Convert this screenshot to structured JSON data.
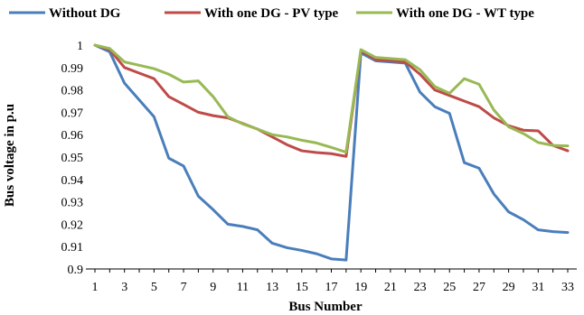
{
  "chart_data": {
    "type": "line",
    "title": "",
    "xlabel": "Bus Number",
    "ylabel": "Bus voltage in p.u",
    "ylim": [
      0.9,
      1.0
    ],
    "yticks": [
      "0.9",
      "0.91",
      "0.92",
      "0.93",
      "0.94",
      "0.95",
      "0.96",
      "0.97",
      "0.98",
      "0.99",
      "1"
    ],
    "xticks": [
      "1",
      "3",
      "5",
      "7",
      "9",
      "11",
      "13",
      "15",
      "17",
      "19",
      "21",
      "23",
      "25",
      "27",
      "29",
      "31",
      "33"
    ],
    "x": [
      1,
      2,
      3,
      4,
      5,
      6,
      7,
      8,
      9,
      10,
      11,
      12,
      13,
      14,
      15,
      16,
      17,
      18,
      19,
      20,
      21,
      22,
      23,
      24,
      25,
      26,
      27,
      28,
      29,
      30,
      31,
      32,
      33
    ],
    "grid": false,
    "legend_position": "top",
    "series": [
      {
        "name": "Without DG",
        "color": "#4a7ebb",
        "values": [
          1.0,
          0.997,
          0.983,
          0.9755,
          0.968,
          0.9495,
          0.946,
          0.9325,
          0.9265,
          0.92,
          0.919,
          0.9175,
          0.9115,
          0.9095,
          0.9083,
          0.9068,
          0.9045,
          0.904,
          0.9965,
          0.993,
          0.9925,
          0.992,
          0.979,
          0.9725,
          0.9695,
          0.9475,
          0.945,
          0.9335,
          0.9255,
          0.922,
          0.9175,
          0.9167,
          0.9163
        ]
      },
      {
        "name": "With one DG - PV type",
        "color": "#be4b48",
        "values": [
          1.0,
          0.998,
          0.99,
          0.9875,
          0.985,
          0.977,
          0.9735,
          0.97,
          0.9685,
          0.9675,
          0.965,
          0.9625,
          0.959,
          0.9555,
          0.9528,
          0.952,
          0.9515,
          0.9503,
          0.9975,
          0.9935,
          0.993,
          0.9925,
          0.987,
          0.98,
          0.9775,
          0.975,
          0.9725,
          0.9675,
          0.964,
          0.962,
          0.9617,
          0.9552,
          0.9528
        ]
      },
      {
        "name": "With one DG - WT type",
        "color": "#98b954",
        "values": [
          1.0,
          0.9985,
          0.9925,
          0.991,
          0.9895,
          0.987,
          0.9835,
          0.984,
          0.977,
          0.968,
          0.9648,
          0.9625,
          0.96,
          0.959,
          0.9575,
          0.9563,
          0.9543,
          0.9522,
          0.998,
          0.9945,
          0.994,
          0.9935,
          0.989,
          0.9815,
          0.9785,
          0.985,
          0.9825,
          0.971,
          0.9635,
          0.9605,
          0.9565,
          0.9552,
          0.955
        ]
      }
    ]
  }
}
